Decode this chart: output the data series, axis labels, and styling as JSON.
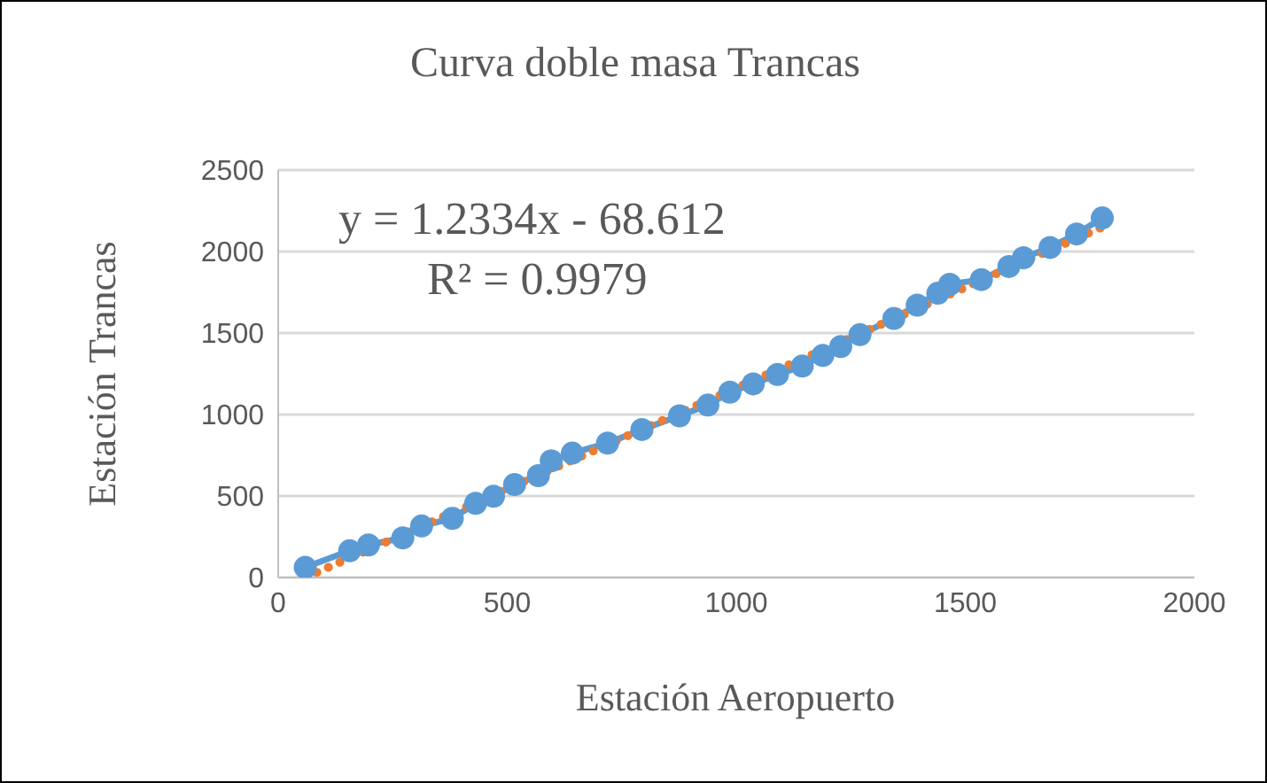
{
  "chart_data": {
    "type": "line",
    "title": "Curva doble masa Trancas",
    "xlabel": "Estación Aeropuerto",
    "ylabel": "Estación Trancas",
    "xlim": [
      0,
      2000
    ],
    "xticks": [
      0,
      500,
      1000,
      1500,
      2000
    ],
    "ylim": [
      0,
      2500
    ],
    "yticks": [
      0,
      500,
      1000,
      1500,
      2000,
      2500
    ],
    "grid": "y",
    "marker": "circle",
    "annotations": [
      "y = 1.2334x - 68.612",
      "R² = 0.9979"
    ],
    "series": [
      {
        "color": "#5b9bd5",
        "x": [
          59,
          156,
          197,
          272,
          313,
          380,
          431,
          470,
          516,
          568,
          596,
          642,
          719,
          794,
          876,
          938,
          986,
          1037,
          1090,
          1144,
          1189,
          1228,
          1270,
          1344,
          1395,
          1440,
          1466,
          1535,
          1595,
          1627,
          1685,
          1743,
          1799
        ],
        "values": [
          62,
          164,
          200,
          243,
          316,
          363,
          455,
          498,
          570,
          625,
          716,
          763,
          825,
          908,
          992,
          1058,
          1137,
          1188,
          1246,
          1297,
          1363,
          1417,
          1490,
          1589,
          1671,
          1744,
          1799,
          1828,
          1908,
          1962,
          2025,
          2108,
          2206
        ]
      },
      {
        "type": "line",
        "color": "#ed7d31",
        "line_style": "dotted",
        "marker": "none",
        "x": [
          59,
          1799
        ],
        "values": [
          0,
          2150
        ]
      }
    ]
  }
}
